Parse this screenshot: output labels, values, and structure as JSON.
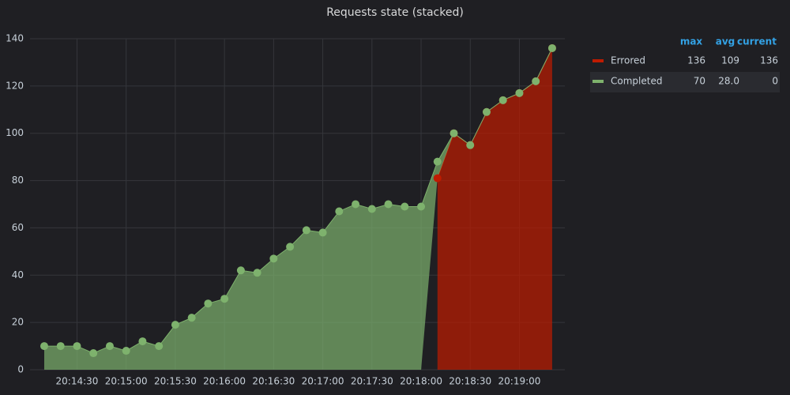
{
  "chart_data": {
    "type": "stacked-area",
    "title": "Requests state (stacked)",
    "x": [
      "20:14:10",
      "20:14:20",
      "20:14:30",
      "20:14:40",
      "20:14:50",
      "20:15:00",
      "20:15:10",
      "20:15:20",
      "20:15:30",
      "20:15:40",
      "20:15:50",
      "20:16:00",
      "20:16:10",
      "20:16:20",
      "20:16:30",
      "20:16:40",
      "20:16:50",
      "20:17:00",
      "20:17:10",
      "20:17:20",
      "20:17:30",
      "20:17:40",
      "20:17:50",
      "20:18:00",
      "20:18:10",
      "20:18:20",
      "20:18:30",
      "20:18:40",
      "20:18:50",
      "20:19:00",
      "20:19:10",
      "20:19:20"
    ],
    "series": [
      {
        "name": "Errored",
        "color": "#bf1b00",
        "values": [
          null,
          null,
          null,
          null,
          null,
          null,
          null,
          null,
          null,
          null,
          null,
          null,
          null,
          null,
          null,
          null,
          null,
          null,
          null,
          null,
          null,
          null,
          null,
          null,
          81,
          100,
          95,
          109,
          114,
          117,
          122,
          136
        ],
        "stats": [
          "136",
          "109",
          "136"
        ]
      },
      {
        "name": "Completed",
        "color": "#7eb26d",
        "values": [
          10,
          10,
          10,
          7,
          10,
          8,
          12,
          10,
          19,
          22,
          28,
          30,
          42,
          41,
          47,
          52,
          59,
          58,
          67,
          70,
          68,
          70,
          69,
          69,
          7,
          0,
          0,
          0,
          0,
          0,
          0,
          0
        ],
        "stats": [
          "70",
          "28.0",
          "0"
        ]
      }
    ],
    "stats_columns": [
      "max",
      "avg",
      "current"
    ],
    "xticks": [
      "20:14:30",
      "20:15:00",
      "20:15:30",
      "20:16:00",
      "20:16:30",
      "20:17:00",
      "20:17:30",
      "20:18:00",
      "20:18:30",
      "20:19:00"
    ],
    "ylim": [
      0,
      140
    ],
    "yticks": [
      0,
      20,
      40,
      60,
      80,
      100,
      120,
      140
    ],
    "grid": true,
    "legend": "right"
  }
}
